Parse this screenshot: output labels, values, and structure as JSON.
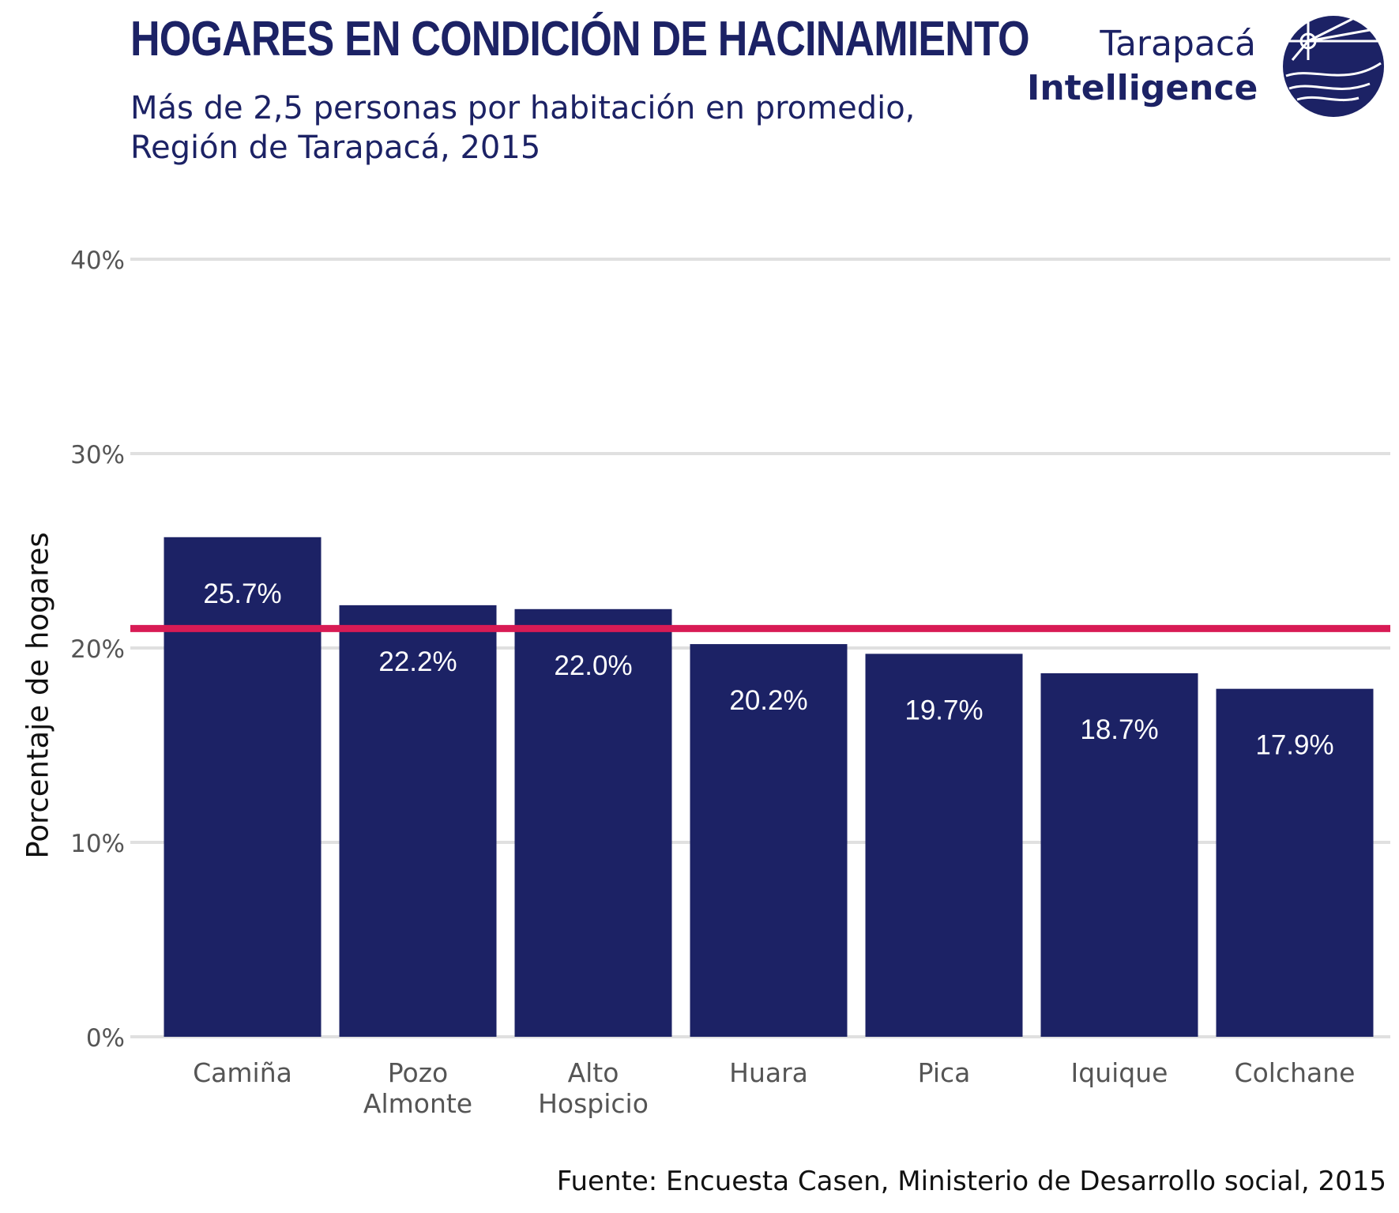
{
  "header": {
    "title": "HOGARES EN CONDICIÓN DE HACINAMIENTO",
    "subtitle_line1": "Más de 2,5 personas por habitación en promedio,",
    "subtitle_line2": "Región de Tarapacá, 2015"
  },
  "logo": {
    "line1": "Tarapacá",
    "line2": "Intelligence",
    "icon": "globe-compass-icon"
  },
  "footer": {
    "source": "Fuente: Encuesta Casen, Ministerio de Desarrollo social, 2015"
  },
  "colors": {
    "bar": "#1c2265",
    "reference_line": "#d81b55",
    "grid": "#e0e0e0",
    "tick_text": "#555555",
    "bar_label": "#ffffff"
  },
  "chart_data": {
    "type": "bar",
    "categories": [
      "Camiña",
      "Pozo Almonte",
      "Alto Hospicio",
      "Huara",
      "Pica",
      "Iquique",
      "Colchane"
    ],
    "category_lines": [
      [
        "Camiña"
      ],
      [
        "Pozo",
        "Almonte"
      ],
      [
        "Alto",
        "Hospicio"
      ],
      [
        "Huara"
      ],
      [
        "Pica"
      ],
      [
        "Iquique"
      ],
      [
        "Colchane"
      ]
    ],
    "values": [
      25.7,
      22.2,
      22.0,
      20.2,
      19.7,
      18.7,
      17.9
    ],
    "value_labels": [
      "25.7%",
      "22.2%",
      "22.0%",
      "20.2%",
      "19.7%",
      "18.7%",
      "17.9%"
    ],
    "reference_line": 21.0,
    "ylabel": "Porcentaje de hogares",
    "xlabel": "",
    "ylim": [
      0,
      40
    ],
    "yticks": [
      0,
      10,
      20,
      30,
      40
    ],
    "ytick_labels": [
      "0%",
      "10%",
      "20%",
      "30%",
      "40%"
    ],
    "grid": true,
    "legend": "none"
  }
}
